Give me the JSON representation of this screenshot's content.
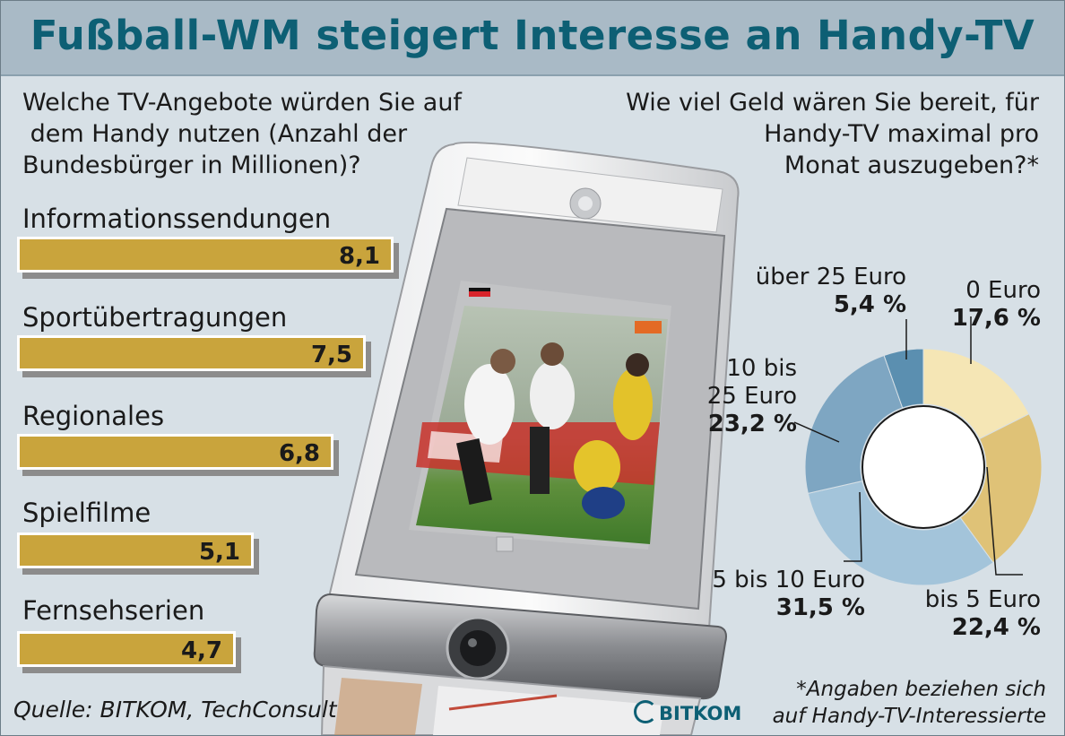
{
  "title": "Fußball-WM steigert Interesse an Handy-TV",
  "left_question": [
    "Welche TV-Angebote würden Sie auf",
    " dem Handy nutzen (Anzahl der",
    "Bundesbürger in Millionen)?"
  ],
  "right_question": [
    "Wie viel Geld wären Sie bereit, für",
    "Handy-TV maximal pro",
    "Monat auszugeben?*"
  ],
  "source": "Quelle: BITKOM, TechConsult",
  "footnote": [
    "*Angaben beziehen sich",
    "auf Handy-TV-Interessierte"
  ],
  "logo": "BITKOM",
  "colors": {
    "bar": "#c9a43c",
    "pie": [
      "#f5e6b5",
      "#dfc277",
      "#a3c4da",
      "#7ea6c2",
      "#5b8fb0"
    ]
  },
  "chart_data": [
    {
      "type": "bar",
      "orientation": "horizontal",
      "categories": [
        "Informationssendungen",
        "Sportübertragungen",
        "Regionales",
        "Spielfilme",
        "Fernsehserien"
      ],
      "values": [
        8.1,
        7.5,
        6.8,
        5.1,
        4.7
      ],
      "value_labels": [
        "8,1",
        "7,5",
        "6,8",
        "5,1",
        "4,7"
      ]
    },
    {
      "type": "pie",
      "style": "donut",
      "slices": [
        {
          "label": "0 Euro",
          "value": 17.6,
          "value_label": "17,6 %"
        },
        {
          "label": "bis 5 Euro",
          "value": 22.4,
          "value_label": "22,4 %"
        },
        {
          "label": "5 bis 10 Euro",
          "value": 31.5,
          "value_label": "31,5 %"
        },
        {
          "label": "10 bis 25 Euro",
          "value": 23.2,
          "value_label": "23,2 %"
        },
        {
          "label": "über 25 Euro",
          "value": 5.4,
          "value_label": "5,4 %"
        }
      ]
    }
  ]
}
